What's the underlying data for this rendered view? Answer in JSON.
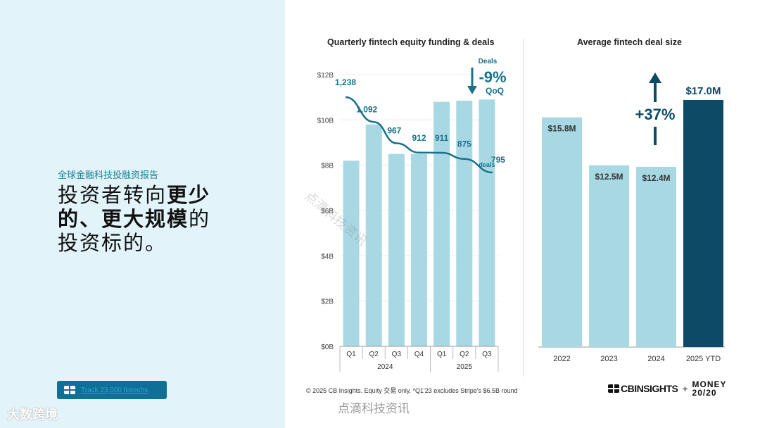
{
  "left": {
    "kicker": "全球金融科技投融资报告",
    "headline_line1_a": "投资者转向",
    "headline_line1_b": "更少",
    "headline_line2_a": "的、更大规模",
    "headline_line2_b": "的",
    "headline_line3": "投资标的。",
    "track_button": "Track 23,000 fintechs"
  },
  "footer": {
    "footnote": "© 2025 CB Insights. Equity 交易 only. *Q1'23 excludes Stripe's $6.5B round",
    "brand_cb": "CBINSIGHTS",
    "brand_plus": "+",
    "brand_money1": "MONEY",
    "brand_money2": "20/20"
  },
  "watermarks": {
    "center": "点滴科技资讯",
    "diagonal": "点滴科技资讯",
    "logo": "大数跨境"
  },
  "colors": {
    "bar_light": "#a8d8e3",
    "bar_dark": "#0c4a66",
    "line": "#17728a",
    "accent_text": "#17728a"
  },
  "chart_data": [
    {
      "type": "bar",
      "title": "Quarterly fintech equity funding & deals",
      "categories": [
        "Q1",
        "Q2",
        "Q3",
        "Q4",
        "Q1",
        "Q2",
        "Q3"
      ],
      "year_groups": [
        {
          "label": "2024",
          "count": 4
        },
        {
          "label": "2025",
          "count": 3
        }
      ],
      "series": [
        {
          "name": "Equity funding ($B)",
          "type": "bar",
          "values": [
            8.2,
            9.8,
            8.5,
            8.5,
            10.8,
            10.85,
            10.9
          ]
        },
        {
          "name": "Deals",
          "type": "line",
          "values": [
            1238,
            1092,
            967,
            912,
            911,
            875,
            795
          ],
          "labels": [
            "1,238",
            "1,092",
            "967",
            "912",
            "911",
            "875",
            "795"
          ]
        }
      ],
      "yticks": [
        "$0B",
        "$2B",
        "$4B",
        "$6B",
        "$8B",
        "$10B",
        "$12B"
      ],
      "ylim": [
        0,
        12
      ],
      "deals_unit": "deals",
      "annotation": {
        "top": "Deals",
        "value": "-9%",
        "bottom": "QoQ"
      }
    },
    {
      "type": "bar",
      "title": "Average fintech deal size",
      "categories": [
        "2022",
        "2023",
        "2024",
        "2025 YTD"
      ],
      "values": [
        15.8,
        12.5,
        12.4,
        17.0
      ],
      "labels": [
        "$15.8M",
        "$12.5M",
        "$12.4M",
        "$17.0M"
      ],
      "highlight_index": 3,
      "ylim": [
        0,
        20
      ],
      "annotation": {
        "value": "+37%"
      }
    }
  ]
}
